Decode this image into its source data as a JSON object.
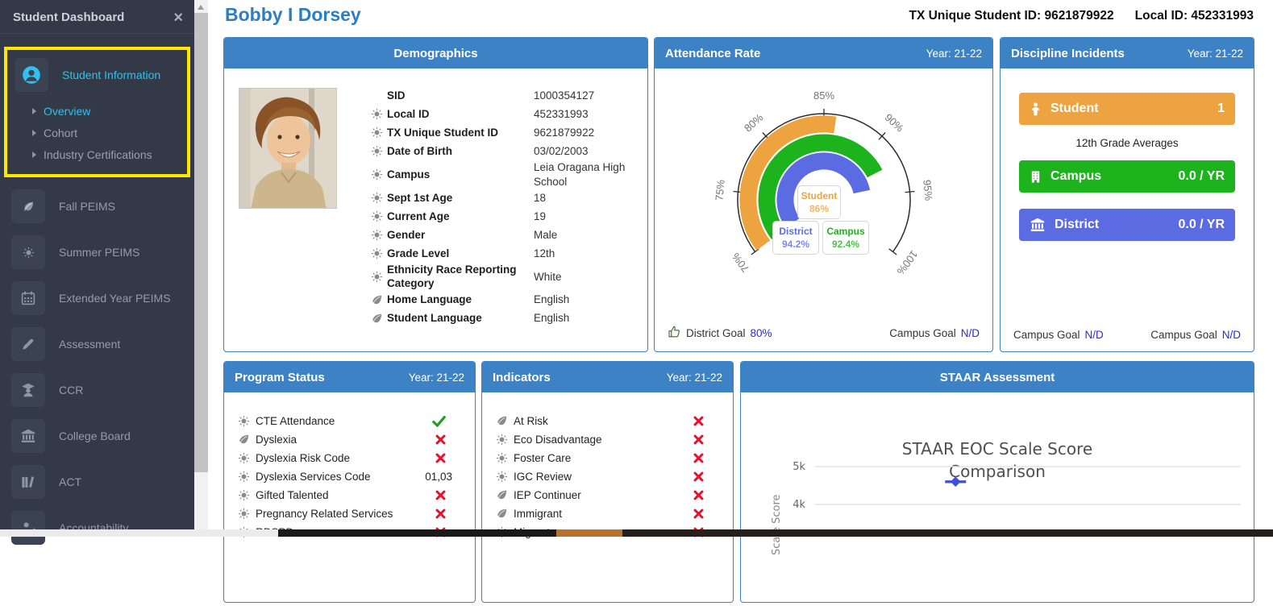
{
  "colors": {
    "header_blue": "#3d82c4",
    "student_orange": "#eda33f",
    "campus_green": "#1db31d",
    "district_blue": "#5b6be1",
    "goal_link_blue": "#2a2ad9",
    "alert_red": "#e8112d",
    "ok_green": "#1f9e1f",
    "highlight_yellow": "#ffe600",
    "active_cyan": "#2fc1f2",
    "sidebar_dark": "#333947"
  },
  "sidebar": {
    "title": "Student Dashboard",
    "close_glyph": "×",
    "section": {
      "label": "Student Information",
      "icon": "user",
      "sub_items": [
        {
          "label": "Overview",
          "active": true
        },
        {
          "label": "Cohort",
          "active": false
        },
        {
          "label": "Industry Certifications",
          "active": false
        }
      ]
    },
    "items": [
      {
        "label": "Fall PEIMS",
        "icon": "leaf"
      },
      {
        "label": "Summer PEIMS",
        "icon": "sun"
      },
      {
        "label": "Extended Year PEIMS",
        "icon": "calendar"
      },
      {
        "label": "Assessment",
        "icon": "pencil"
      },
      {
        "label": "CCR",
        "icon": "graduate"
      },
      {
        "label": "College Board",
        "icon": "bank"
      },
      {
        "label": "ACT",
        "icon": "books"
      },
      {
        "label": "Accountability",
        "icon": "person-check"
      }
    ]
  },
  "header": {
    "student_name": "Bobby I Dorsey",
    "tx_id_text": "TX Unique Student ID: 9621879922",
    "local_id_text": "Local ID: 452331993"
  },
  "demographics": {
    "title": "Demographics",
    "fields": [
      {
        "icon": "none",
        "label": "SID",
        "value": "1000354127"
      },
      {
        "icon": "sun",
        "label": "Local ID",
        "value": "452331993"
      },
      {
        "icon": "sun",
        "label": "TX Unique Student ID",
        "value": "9621879922"
      },
      {
        "icon": "sun",
        "label": "Date of Birth",
        "value": "03/02/2003"
      },
      {
        "icon": "sun",
        "label": "Campus",
        "value": "Leia Oragana High School"
      },
      {
        "icon": "sun",
        "label": "Sept 1st Age",
        "value": "18"
      },
      {
        "icon": "sun",
        "label": "Current Age",
        "value": "19"
      },
      {
        "icon": "sun",
        "label": "Gender",
        "value": "Male"
      },
      {
        "icon": "sun",
        "label": "Grade Level",
        "value": "12th"
      },
      {
        "icon": "sun",
        "label": "Ethnicity Race Reporting Category",
        "value": "White"
      },
      {
        "icon": "leaf",
        "label": "Home Language",
        "value": "English"
      },
      {
        "icon": "leaf",
        "label": "Student Language",
        "value": "English"
      }
    ]
  },
  "attendance": {
    "title": "Attendance Rate",
    "year": "Year: 21-22",
    "footer": {
      "left_label": "District Goal",
      "left_value": "80%",
      "right_label": "Campus Goal",
      "right_value": "N/D"
    },
    "chart_data": {
      "type": "gauge",
      "min": 70,
      "max": 100,
      "unit": "%",
      "start_angle": -127,
      "end_angle": 127,
      "axis_ticks": [
        70,
        75,
        80,
        85,
        90,
        95,
        100
      ],
      "series": [
        {
          "name": "Student",
          "value": 86,
          "display": "86%",
          "color": "#eda33f"
        },
        {
          "name": "Campus",
          "value": 92.4,
          "display": "92.4%",
          "color": "#1db31d"
        },
        {
          "name": "District",
          "value": 94.2,
          "display": "94.2%",
          "color": "#5b6be1"
        }
      ]
    }
  },
  "discipline": {
    "title": "Discipline Incidents",
    "year": "Year: 21-22",
    "note": "12th Grade Averages",
    "rows": [
      {
        "name": "Student",
        "value": "1",
        "color": "#eda33f",
        "icon": "child"
      },
      {
        "name": "Campus",
        "value": "0.0 / YR",
        "color": "#1db31d",
        "icon": "building"
      },
      {
        "name": "District",
        "value": "0.0 / YR",
        "color": "#5b6be1",
        "icon": "bank"
      }
    ],
    "footer": {
      "left_label": "Campus Goal",
      "left_value": "N/D",
      "right_label": "Campus Goal",
      "right_value": "N/D"
    }
  },
  "program_status": {
    "title": "Program Status",
    "year": "Year: 21-22",
    "items": [
      {
        "icon": "sun",
        "label": "CTE Attendance",
        "status": "check",
        "value": ""
      },
      {
        "icon": "leaf",
        "label": "Dyslexia",
        "status": "x",
        "value": ""
      },
      {
        "icon": "sun",
        "label": "Dyslexia Risk Code",
        "status": "x",
        "value": ""
      },
      {
        "icon": "sun",
        "label": "Dyslexia Services Code",
        "status": "text",
        "value": "01,03"
      },
      {
        "icon": "sun",
        "label": "Gifted Talented",
        "status": "x",
        "value": ""
      },
      {
        "icon": "sun",
        "label": "Pregnancy Related Services",
        "status": "x",
        "value": ""
      },
      {
        "icon": "sun",
        "label": "RDSPD",
        "status": "x",
        "value": ""
      }
    ]
  },
  "indicators": {
    "title": "Indicators",
    "year": "Year: 21-22",
    "items": [
      {
        "icon": "leaf",
        "label": "At Risk",
        "status": "x",
        "value": ""
      },
      {
        "icon": "sun",
        "label": "Eco Disadvantage",
        "status": "x",
        "value": ""
      },
      {
        "icon": "sun",
        "label": "Foster Care",
        "status": "x",
        "value": ""
      },
      {
        "icon": "sun",
        "label": "IGC Review",
        "status": "x",
        "value": ""
      },
      {
        "icon": "leaf",
        "label": "IEP Continuer",
        "status": "x",
        "value": ""
      },
      {
        "icon": "leaf",
        "label": "Immigrant",
        "status": "x",
        "value": ""
      },
      {
        "icon": "sun",
        "label": "Migrant",
        "status": "x",
        "value": ""
      }
    ]
  },
  "staar": {
    "title": "STAAR Assessment",
    "chart_data": {
      "type": "scatter",
      "title": "STAAR EOC Scale Score Comparison",
      "ylabel": "Scale Score",
      "yticks": [
        {
          "label": "5k",
          "value": 5000
        },
        {
          "label": "4k",
          "value": 4000
        }
      ],
      "grid": true,
      "marker_color": "#4050d0",
      "points": [
        {
          "y": 4600,
          "x_frac": 0.33
        }
      ]
    }
  }
}
